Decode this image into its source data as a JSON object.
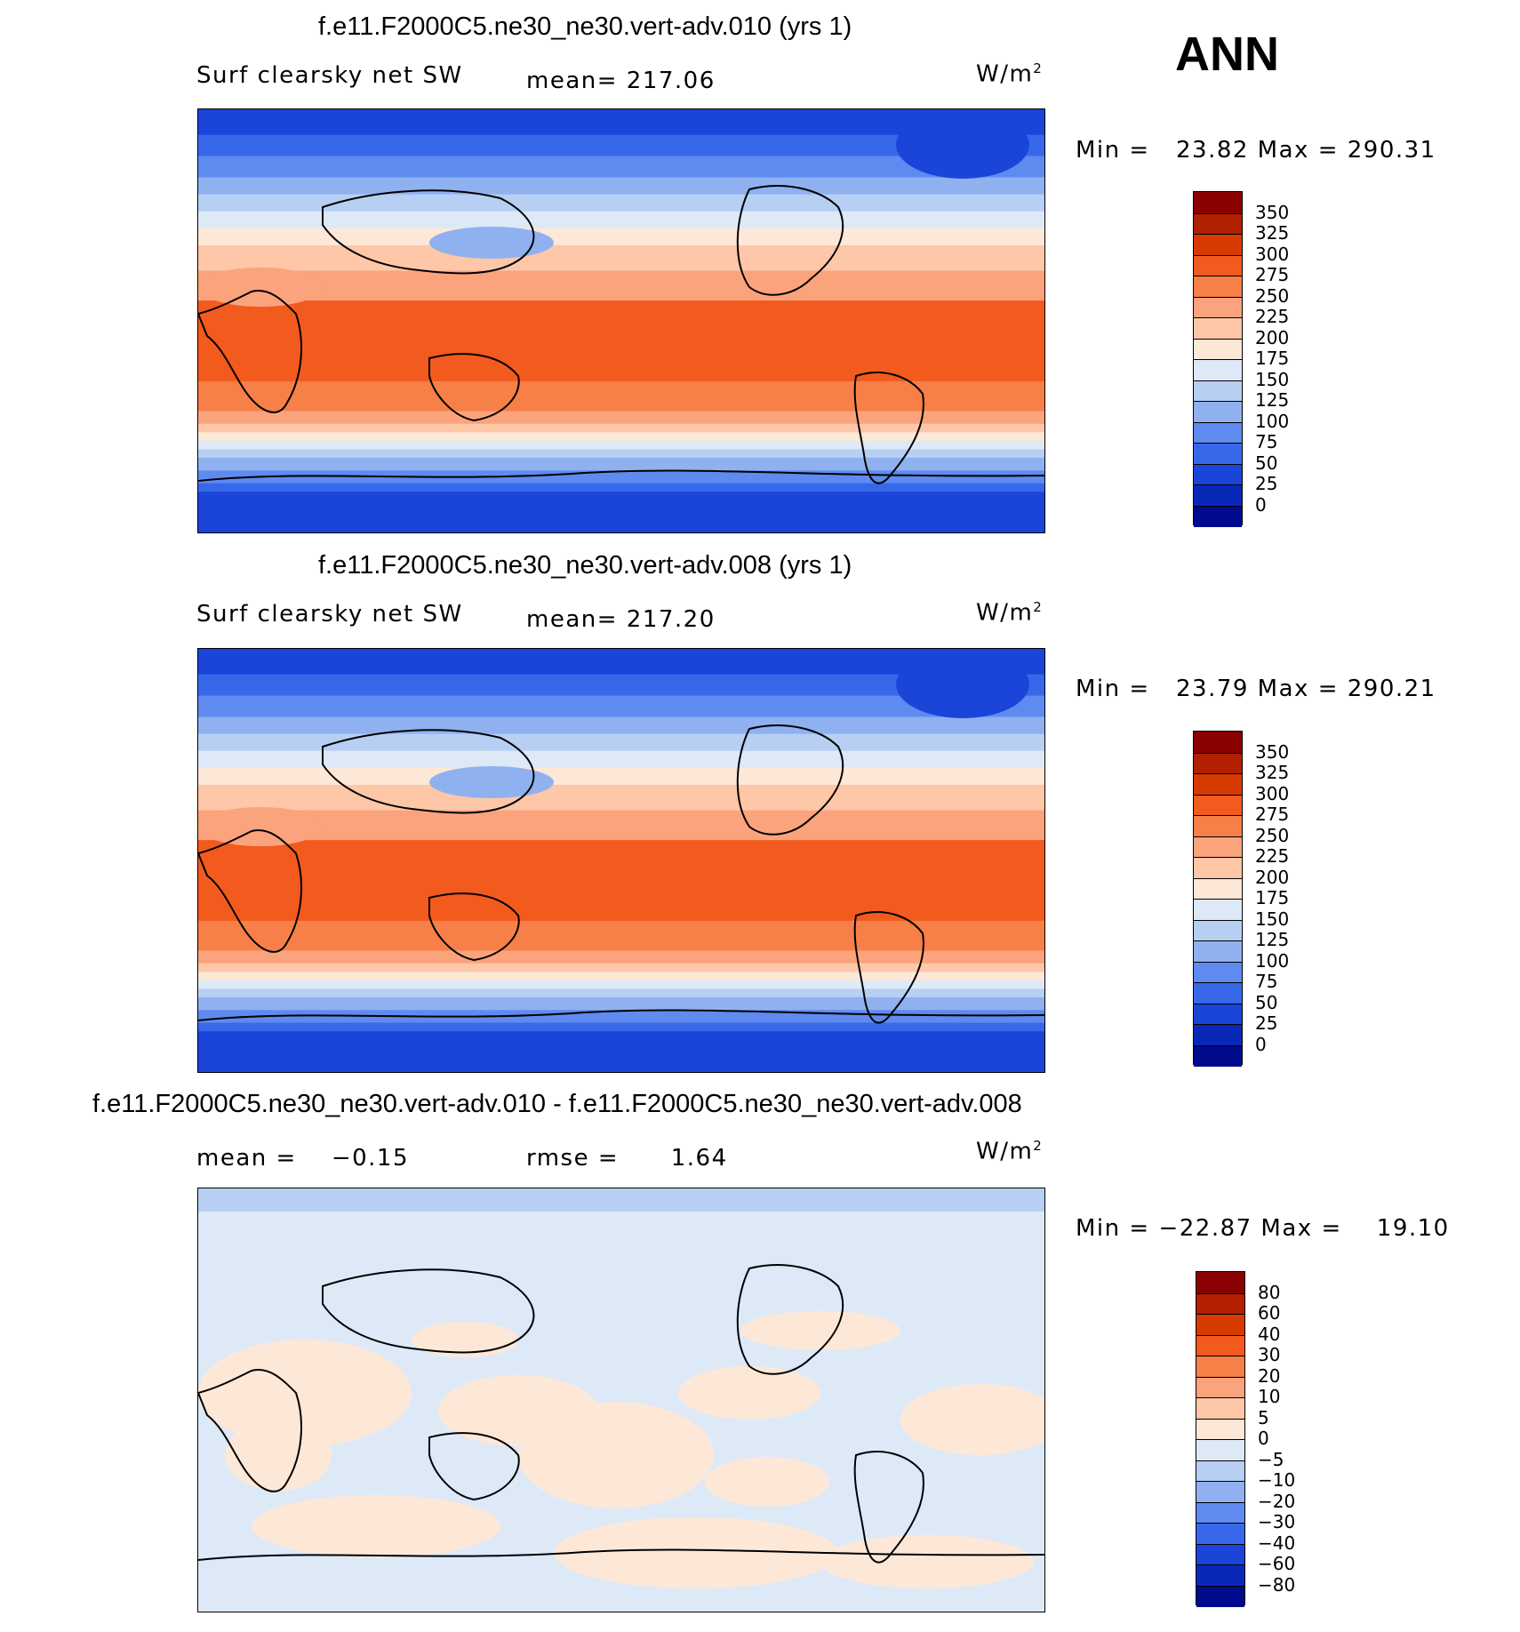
{
  "season": "ANN",
  "panels": [
    {
      "id": "p1",
      "title": "f.e11.F2000C5.ne30_ne30.vert-adv.010 (yrs 1)",
      "left_label": "Surf clearsky net SW",
      "center_label": "mean= 217.06",
      "units": "W/m",
      "units_exp": "2",
      "minmax": "Min =   23.82 Max = 290.31",
      "colorbar_labels": [
        "350",
        "325",
        "300",
        "275",
        "250",
        "225",
        "200",
        "175",
        "150",
        "125",
        "100",
        "75",
        "50",
        "25",
        "0"
      ],
      "colorbar_colors": [
        "#8b0000",
        "#b22000",
        "#d63a00",
        "#f25a1e",
        "#f77f48",
        "#fba37c",
        "#fdc7a8",
        "#fde8d8",
        "#dde9f7",
        "#b7cff3",
        "#8fb1f0",
        "#5f8bf0",
        "#3868ea",
        "#1b45d8",
        "#0a28b8",
        "#000a8c"
      ]
    },
    {
      "id": "p2",
      "title": "f.e11.F2000C5.ne30_ne30.vert-adv.008 (yrs 1)",
      "left_label": "Surf clearsky net SW",
      "center_label": "mean= 217.20",
      "units": "W/m",
      "units_exp": "2",
      "minmax": "Min =   23.79 Max = 290.21",
      "colorbar_labels": [
        "350",
        "325",
        "300",
        "275",
        "250",
        "225",
        "200",
        "175",
        "150",
        "125",
        "100",
        "75",
        "50",
        "25",
        "0"
      ],
      "colorbar_colors": [
        "#8b0000",
        "#b22000",
        "#d63a00",
        "#f25a1e",
        "#f77f48",
        "#fba37c",
        "#fdc7a8",
        "#fde8d8",
        "#dde9f7",
        "#b7cff3",
        "#8fb1f0",
        "#5f8bf0",
        "#3868ea",
        "#1b45d8",
        "#0a28b8",
        "#000a8c"
      ]
    },
    {
      "id": "p3",
      "title": "f.e11.F2000C5.ne30_ne30.vert-adv.010 - f.e11.F2000C5.ne30_ne30.vert-adv.008",
      "left_label": "mean =    −0.15",
      "center_label": "rmse =      1.64",
      "units": "W/m",
      "units_exp": "2",
      "minmax": "Min = −22.87 Max =    19.10",
      "colorbar_labels": [
        "80",
        "60",
        "40",
        "30",
        "20",
        "10",
        "5",
        "0",
        "−5",
        "−10",
        "−20",
        "−30",
        "−40",
        "−60",
        "−80"
      ],
      "colorbar_colors": [
        "#8b0000",
        "#b22000",
        "#d63a00",
        "#f25a1e",
        "#f77f48",
        "#fba37c",
        "#fdc7a8",
        "#fde8d8",
        "#dde9f7",
        "#b7cff3",
        "#8fb1f0",
        "#5f8bf0",
        "#3868ea",
        "#1b45d8",
        "#0a28b8",
        "#000a8c"
      ]
    }
  ]
}
